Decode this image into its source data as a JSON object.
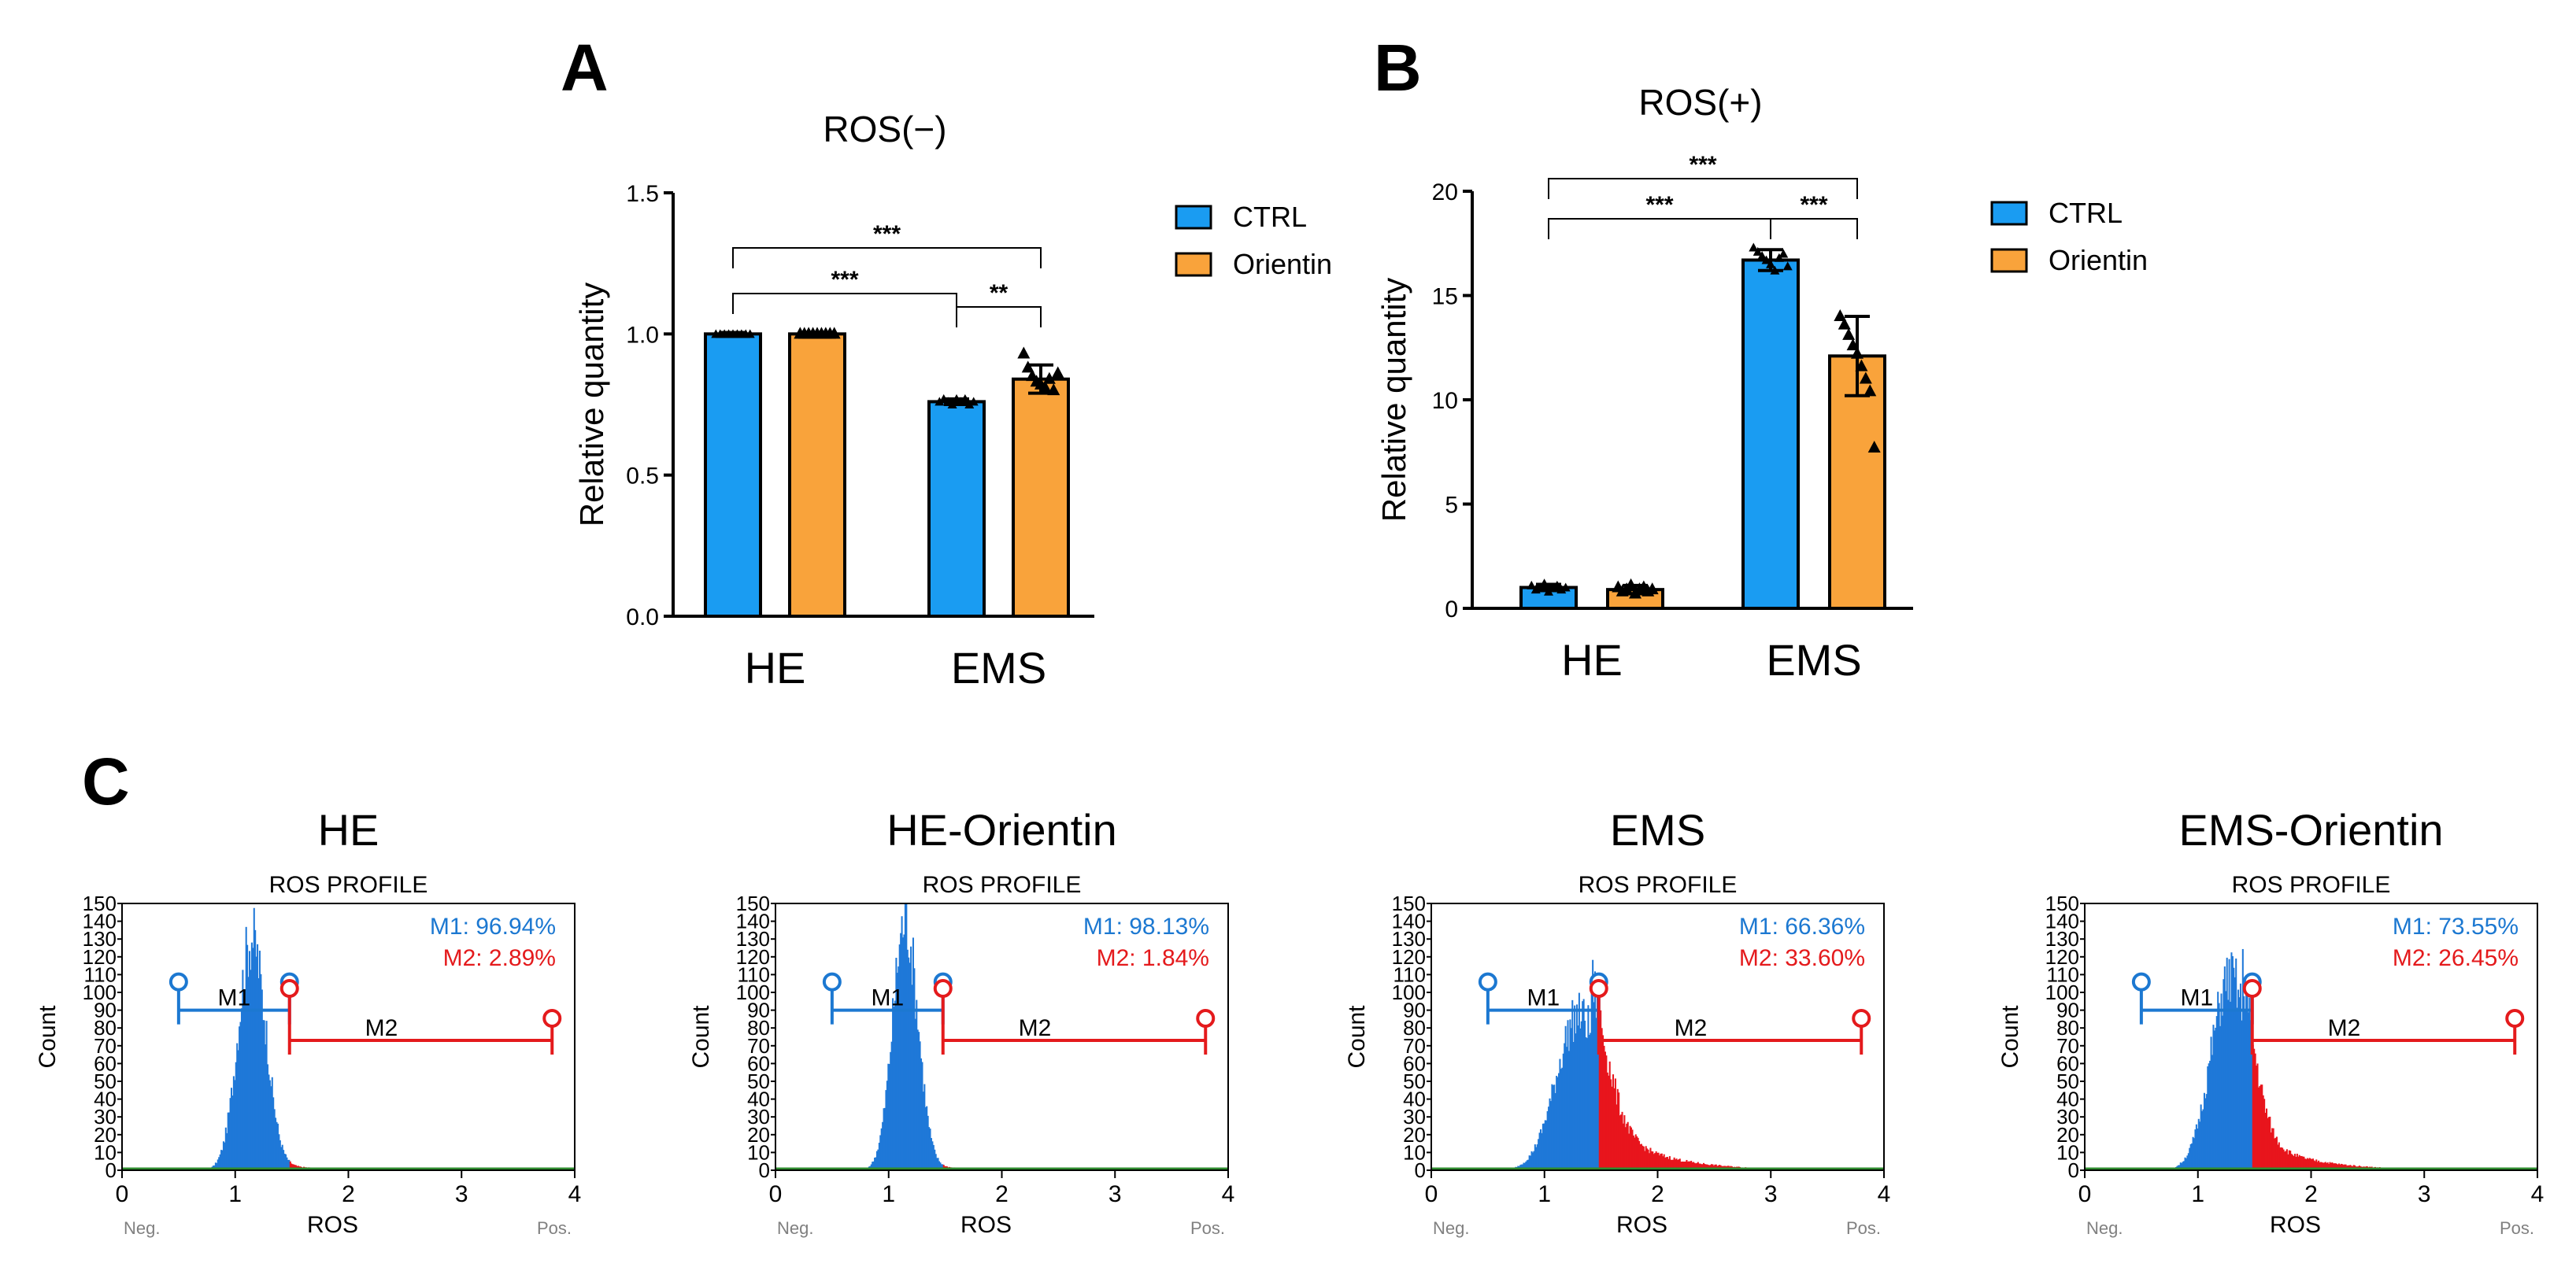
{
  "colors": {
    "ctrl": "#1a9cf2",
    "orientin": "#f9a33b",
    "m1": "#1c78d1",
    "m2": "#e41a1c",
    "hist_blue": "#1f78d8",
    "hist_red": "#e8151c",
    "hist_green": "#2e8b2e"
  },
  "panels": {
    "A": "A",
    "B": "B",
    "C": "C"
  },
  "legend": {
    "ctrl": "CTRL",
    "orientin": "Orientin"
  },
  "chart_data": [
    {
      "id": "A",
      "type": "bar",
      "title": "ROS(−)",
      "ylabel": "Relative quantity",
      "xlabel": "",
      "ylim": [
        0,
        1.5
      ],
      "yticks": [
        "0.0",
        "0.5",
        "1.0",
        "1.5"
      ],
      "categories": [
        "HE",
        "EMS"
      ],
      "series": [
        {
          "name": "CTRL",
          "values": [
            1.0,
            0.76
          ],
          "errors": [
            0.005,
            0.01
          ],
          "points": [
            [
              1.0,
              1.0,
              1.0,
              1.0,
              1.0,
              1.0,
              1.0,
              1.0,
              1.0
            ],
            [
              0.76,
              0.77,
              0.76,
              0.75,
              0.77,
              0.76,
              0.77,
              0.75,
              0.76
            ]
          ]
        },
        {
          "name": "Orientin",
          "values": [
            1.0,
            0.84
          ],
          "errors": [
            0.005,
            0.05
          ],
          "points": [
            [
              1.0,
              1.0,
              1.0,
              1.0,
              1.0,
              1.0,
              1.0,
              1.0,
              1.0
            ],
            [
              0.93,
              0.88,
              0.85,
              0.83,
              0.82,
              0.81,
              0.84,
              0.8,
              0.86
            ]
          ]
        }
      ],
      "significance": [
        {
          "label": "***",
          "from": [
            0,
            0
          ],
          "to": [
            1,
            0
          ]
        },
        {
          "label": "**",
          "from": [
            1,
            0
          ],
          "to": [
            1,
            1
          ]
        },
        {
          "label": "***",
          "from": [
            0,
            0
          ],
          "to": [
            1,
            1
          ]
        }
      ]
    },
    {
      "id": "B",
      "type": "bar",
      "title": "ROS(+)",
      "ylabel": "Relative quantity",
      "xlabel": "",
      "ylim": [
        0,
        20
      ],
      "yticks": [
        "0",
        "5",
        "10",
        "15",
        "20"
      ],
      "categories": [
        "HE",
        "EMS"
      ],
      "series": [
        {
          "name": "CTRL",
          "values": [
            1.0,
            16.7
          ],
          "errors": [
            0.15,
            0.5
          ],
          "points": [
            [
              1.1,
              0.9,
              1.0,
              1.2,
              0.8,
              1.0,
              1.1,
              0.9,
              1.0
            ],
            [
              17.3,
              17.1,
              16.9,
              16.7,
              16.5,
              16.2,
              16.8,
              17.0,
              16.4
            ]
          ]
        },
        {
          "name": "Orientin",
          "values": [
            0.9,
            12.1
          ],
          "errors": [
            0.2,
            1.9
          ],
          "points": [
            [
              1.0,
              0.8,
              0.9,
              1.1,
              0.7,
              0.9,
              1.0,
              0.8,
              0.9
            ],
            [
              14.0,
              13.6,
              13.1,
              12.6,
              12.2,
              11.6,
              11.0,
              10.4,
              7.7
            ]
          ]
        }
      ],
      "significance": [
        {
          "label": "***",
          "from": [
            0,
            0
          ],
          "to": [
            1,
            0
          ]
        },
        {
          "label": "***",
          "from": [
            1,
            0
          ],
          "to": [
            1,
            1
          ]
        },
        {
          "label": "***",
          "from": [
            0,
            0
          ],
          "to": [
            1,
            1
          ]
        }
      ]
    },
    {
      "id": "C1",
      "type": "histogram",
      "title": "HE",
      "subtitle": "ROS PROFILE",
      "xlabel": "ROS",
      "ylabel": "Count",
      "xlim": [
        0,
        4
      ],
      "ylim": [
        0,
        150
      ],
      "xticks": [
        "0",
        "1",
        "2",
        "3",
        "4"
      ],
      "yticks": [
        "0",
        "10",
        "20",
        "30",
        "40",
        "50",
        "60",
        "70",
        "80",
        "90",
        "100",
        "110",
        "120",
        "130",
        "140",
        "150"
      ],
      "neg_label": "Neg.",
      "pos_label": "Pos.",
      "peak_x": 1.14,
      "peak_count": 135,
      "spread": 0.12,
      "tail": 0.25,
      "m1_label": "M1",
      "m2_label": "M2",
      "m1_range": [
        0.5,
        1.48
      ],
      "m2_range": [
        1.48,
        3.8
      ],
      "m1_text": "M1: 96.94%",
      "m2_text": "M2: 2.89%"
    },
    {
      "id": "C2",
      "type": "histogram",
      "title": "HE-Orientin",
      "subtitle": "ROS PROFILE",
      "xlabel": "ROS",
      "ylabel": "Count",
      "xlim": [
        0,
        4
      ],
      "ylim": [
        0,
        150
      ],
      "xticks": [
        "0",
        "1",
        "2",
        "3",
        "4"
      ],
      "yticks": [
        "0",
        "10",
        "20",
        "30",
        "40",
        "50",
        "60",
        "70",
        "80",
        "90",
        "100",
        "110",
        "120",
        "130",
        "140",
        "150"
      ],
      "neg_label": "Neg.",
      "pos_label": "Pos.",
      "peak_x": 1.14,
      "peak_count": 145,
      "spread": 0.11,
      "tail": 0.2,
      "m1_label": "M1",
      "m2_label": "M2",
      "m1_range": [
        0.5,
        1.48
      ],
      "m2_range": [
        1.48,
        3.8
      ],
      "m1_text": "M1: 98.13%",
      "m2_text": "M2: 1.84%"
    },
    {
      "id": "C3",
      "type": "histogram",
      "title": "EMS",
      "subtitle": "ROS PROFILE",
      "xlabel": "ROS",
      "ylabel": "Count",
      "xlim": [
        0,
        4
      ],
      "ylim": [
        0,
        150
      ],
      "xticks": [
        "0",
        "1",
        "2",
        "3",
        "4"
      ],
      "yticks": [
        "0",
        "10",
        "20",
        "30",
        "40",
        "50",
        "60",
        "70",
        "80",
        "90",
        "100",
        "110",
        "120",
        "130",
        "140",
        "150"
      ],
      "neg_label": "Neg.",
      "pos_label": "Pos.",
      "peak_x": 1.3,
      "peak_count": 90,
      "spread": 0.2,
      "tail": 2.3,
      "m1_label": "M1",
      "m2_label": "M2",
      "m1_range": [
        0.5,
        1.48
      ],
      "m2_range": [
        1.48,
        3.8
      ],
      "m1_text": "M1: 66.36%",
      "m2_text": "M2: 33.60%"
    },
    {
      "id": "C4",
      "type": "histogram",
      "title": "EMS-Orientin",
      "subtitle": "ROS PROFILE",
      "xlabel": "ROS",
      "ylabel": "Count",
      "xlim": [
        0,
        4
      ],
      "ylim": [
        0,
        150
      ],
      "xticks": [
        "0",
        "1",
        "2",
        "3",
        "4"
      ],
      "yticks": [
        "0",
        "10",
        "20",
        "30",
        "40",
        "50",
        "60",
        "70",
        "80",
        "90",
        "100",
        "110",
        "120",
        "130",
        "140",
        "150"
      ],
      "neg_label": "Neg.",
      "pos_label": "Pos.",
      "peak_x": 1.28,
      "peak_count": 112,
      "spread": 0.17,
      "tail": 1.6,
      "m1_label": "M1",
      "m2_label": "M2",
      "m1_range": [
        0.5,
        1.48
      ],
      "m2_range": [
        1.48,
        3.8
      ],
      "m1_text": "M1: 73.55%",
      "m2_text": "M2: 26.45%"
    }
  ]
}
